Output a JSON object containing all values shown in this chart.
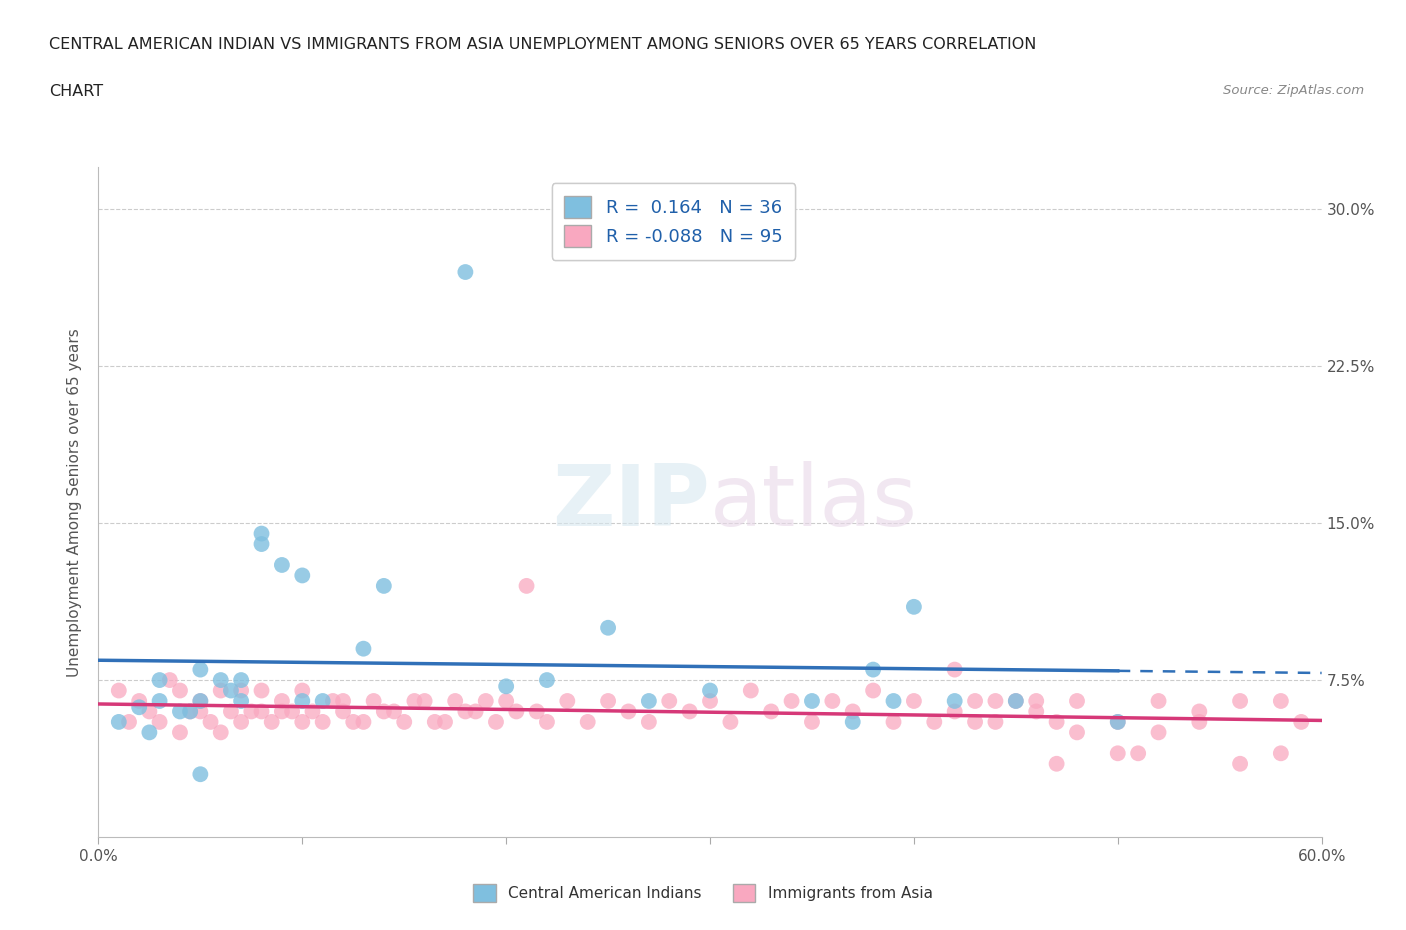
{
  "title_line1": "CENTRAL AMERICAN INDIAN VS IMMIGRANTS FROM ASIA UNEMPLOYMENT AMONG SENIORS OVER 65 YEARS CORRELATION",
  "title_line2": "CHART",
  "source": "Source: ZipAtlas.com",
  "ylabel": "Unemployment Among Seniors over 65 years",
  "xlim": [
    0.0,
    0.6
  ],
  "ylim": [
    0.0,
    0.32
  ],
  "x_ticks": [
    0.0,
    0.1,
    0.2,
    0.3,
    0.4,
    0.5,
    0.6
  ],
  "x_tick_labels": [
    "0.0%",
    "",
    "",
    "",
    "",
    "",
    "60.0%"
  ],
  "y_ticks": [
    0.0,
    0.075,
    0.15,
    0.225,
    0.3
  ],
  "y_tick_right_labels": [
    "",
    "7.5%",
    "15.0%",
    "22.5%",
    "30.0%"
  ],
  "legend_blue_label": "R =  0.164   N = 36",
  "legend_pink_label": "R = -0.088   N = 95",
  "legend_bottom_blue": "Central American Indians",
  "legend_bottom_pink": "Immigrants from Asia",
  "blue_color": "#7fbfdf",
  "pink_color": "#f9a8c0",
  "blue_line_color": "#3070b8",
  "pink_line_color": "#d63878",
  "watermark_zip": "ZIP",
  "watermark_atlas": "atlas",
  "blue_R": 0.164,
  "pink_R": -0.088,
  "blue_scatter_x": [
    0.01,
    0.02,
    0.025,
    0.03,
    0.03,
    0.04,
    0.045,
    0.05,
    0.05,
    0.05,
    0.06,
    0.065,
    0.07,
    0.07,
    0.08,
    0.08,
    0.09,
    0.1,
    0.1,
    0.11,
    0.13,
    0.14,
    0.18,
    0.2,
    0.22,
    0.25,
    0.27,
    0.3,
    0.35,
    0.37,
    0.38,
    0.39,
    0.4,
    0.42,
    0.45,
    0.5
  ],
  "blue_scatter_y": [
    0.055,
    0.062,
    0.05,
    0.065,
    0.075,
    0.06,
    0.06,
    0.065,
    0.08,
    0.03,
    0.075,
    0.07,
    0.075,
    0.065,
    0.145,
    0.14,
    0.13,
    0.125,
    0.065,
    0.065,
    0.09,
    0.12,
    0.27,
    0.072,
    0.075,
    0.1,
    0.065,
    0.07,
    0.065,
    0.055,
    0.08,
    0.065,
    0.11,
    0.065,
    0.065,
    0.055
  ],
  "pink_scatter_x": [
    0.01,
    0.015,
    0.02,
    0.025,
    0.03,
    0.035,
    0.04,
    0.04,
    0.045,
    0.05,
    0.05,
    0.055,
    0.06,
    0.06,
    0.065,
    0.07,
    0.07,
    0.075,
    0.08,
    0.08,
    0.085,
    0.09,
    0.09,
    0.095,
    0.1,
    0.1,
    0.105,
    0.11,
    0.115,
    0.12,
    0.12,
    0.125,
    0.13,
    0.135,
    0.14,
    0.145,
    0.15,
    0.155,
    0.16,
    0.165,
    0.17,
    0.175,
    0.18,
    0.185,
    0.19,
    0.195,
    0.2,
    0.205,
    0.21,
    0.215,
    0.22,
    0.23,
    0.24,
    0.25,
    0.26,
    0.27,
    0.28,
    0.29,
    0.3,
    0.31,
    0.32,
    0.33,
    0.34,
    0.35,
    0.36,
    0.37,
    0.38,
    0.39,
    0.4,
    0.41,
    0.42,
    0.43,
    0.44,
    0.45,
    0.46,
    0.47,
    0.48,
    0.5,
    0.52,
    0.54,
    0.56,
    0.58,
    0.59,
    0.42,
    0.44,
    0.46,
    0.48,
    0.5,
    0.52,
    0.54,
    0.56,
    0.58,
    0.43,
    0.47,
    0.51
  ],
  "pink_scatter_y": [
    0.07,
    0.055,
    0.065,
    0.06,
    0.055,
    0.075,
    0.05,
    0.07,
    0.06,
    0.06,
    0.065,
    0.055,
    0.05,
    0.07,
    0.06,
    0.055,
    0.07,
    0.06,
    0.06,
    0.07,
    0.055,
    0.06,
    0.065,
    0.06,
    0.055,
    0.07,
    0.06,
    0.055,
    0.065,
    0.06,
    0.065,
    0.055,
    0.055,
    0.065,
    0.06,
    0.06,
    0.055,
    0.065,
    0.065,
    0.055,
    0.055,
    0.065,
    0.06,
    0.06,
    0.065,
    0.055,
    0.065,
    0.06,
    0.12,
    0.06,
    0.055,
    0.065,
    0.055,
    0.065,
    0.06,
    0.055,
    0.065,
    0.06,
    0.065,
    0.055,
    0.07,
    0.06,
    0.065,
    0.055,
    0.065,
    0.06,
    0.07,
    0.055,
    0.065,
    0.055,
    0.06,
    0.065,
    0.055,
    0.065,
    0.06,
    0.055,
    0.065,
    0.055,
    0.065,
    0.06,
    0.065,
    0.04,
    0.055,
    0.08,
    0.065,
    0.065,
    0.05,
    0.04,
    0.05,
    0.055,
    0.035,
    0.065,
    0.055,
    0.035,
    0.04
  ]
}
